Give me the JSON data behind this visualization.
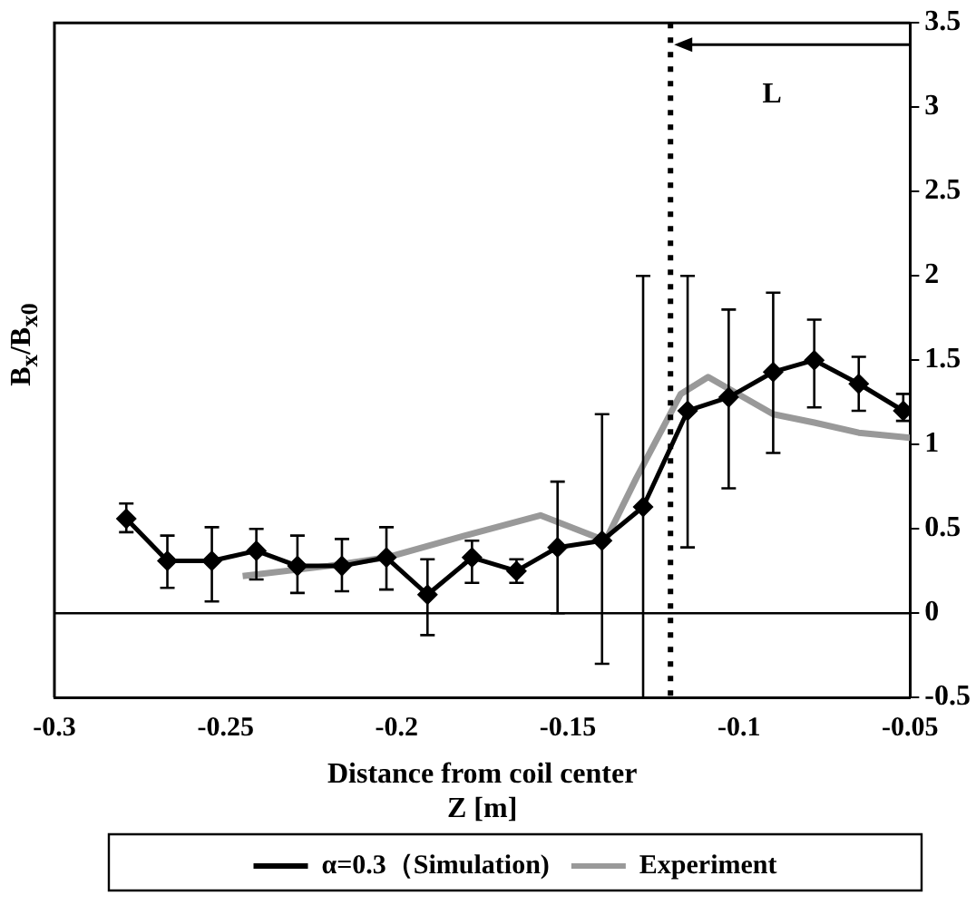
{
  "chart_data": {
    "type": "line",
    "xlabel": "Distance from coil center\nZ [m]",
    "ylabel": "B$_{x}$/B$_{x0}$",
    "xlim": [
      -0.3,
      -0.05
    ],
    "xticks": [
      -0.3,
      -0.25,
      -0.2,
      -0.15,
      -0.1,
      -0.05
    ],
    "ylim": [
      -0.5,
      3.5
    ],
    "yticks": [
      -0.5,
      0,
      0.5,
      1,
      1.5,
      2,
      2.5,
      3,
      3.5
    ],
    "grid": false,
    "legend": "bottom",
    "line_style": "solid",
    "ref_lines": [
      {
        "axis": "y",
        "value": 0,
        "color": "#000000",
        "line_style": "solid"
      },
      {
        "axis": "x",
        "value": -0.12,
        "color": "#000000",
        "line_style": "dotted"
      }
    ],
    "annotations": [
      "L"
    ],
    "series": [
      {
        "name": "α=0.3（Simulation)",
        "color": "#000000",
        "marker": "diamond",
        "x": [
          -0.279,
          -0.267,
          -0.254,
          -0.241,
          -0.229,
          -0.216,
          -0.203,
          -0.191,
          -0.178,
          -0.165,
          -0.153,
          -0.14,
          -0.128,
          -0.115,
          -0.103,
          -0.09,
          -0.078,
          -0.065,
          -0.052
        ],
        "values": [
          0.56,
          0.31,
          0.31,
          0.37,
          0.28,
          0.28,
          0.33,
          0.11,
          0.33,
          0.25,
          0.39,
          0.43,
          0.63,
          1.2,
          1.28,
          1.43,
          1.5,
          1.36,
          1.2
        ],
        "errors": [
          [
            0.48,
            0.65
          ],
          [
            0.15,
            0.46
          ],
          [
            0.07,
            0.51
          ],
          [
            0.2,
            0.5
          ],
          [
            0.12,
            0.46
          ],
          [
            0.13,
            0.44
          ],
          [
            0.14,
            0.51
          ],
          [
            -0.13,
            0.32
          ],
          [
            0.18,
            0.43
          ],
          [
            0.18,
            0.32
          ],
          [
            0,
            0.78
          ],
          [
            -0.3,
            1.18
          ],
          [
            -0.5,
            2
          ],
          [
            0.39,
            2
          ],
          [
            0.74,
            1.8
          ],
          [
            0.95,
            1.9
          ],
          [
            1.22,
            1.74
          ],
          [
            1.2,
            1.52
          ],
          [
            1.14,
            1.3
          ]
        ]
      },
      {
        "name": "Experiment",
        "color": "#999999",
        "marker": "none",
        "x": [
          -0.245,
          -0.22,
          -0.203,
          -0.18,
          -0.158,
          -0.139,
          -0.13,
          -0.117,
          -0.109,
          -0.09,
          -0.078,
          -0.065,
          -0.05
        ],
        "values": [
          0.22,
          0.28,
          0.33,
          0.46,
          0.58,
          0.43,
          0.8,
          1.3,
          1.4,
          1.18,
          1.13,
          1.07,
          1.04
        ]
      }
    ]
  }
}
